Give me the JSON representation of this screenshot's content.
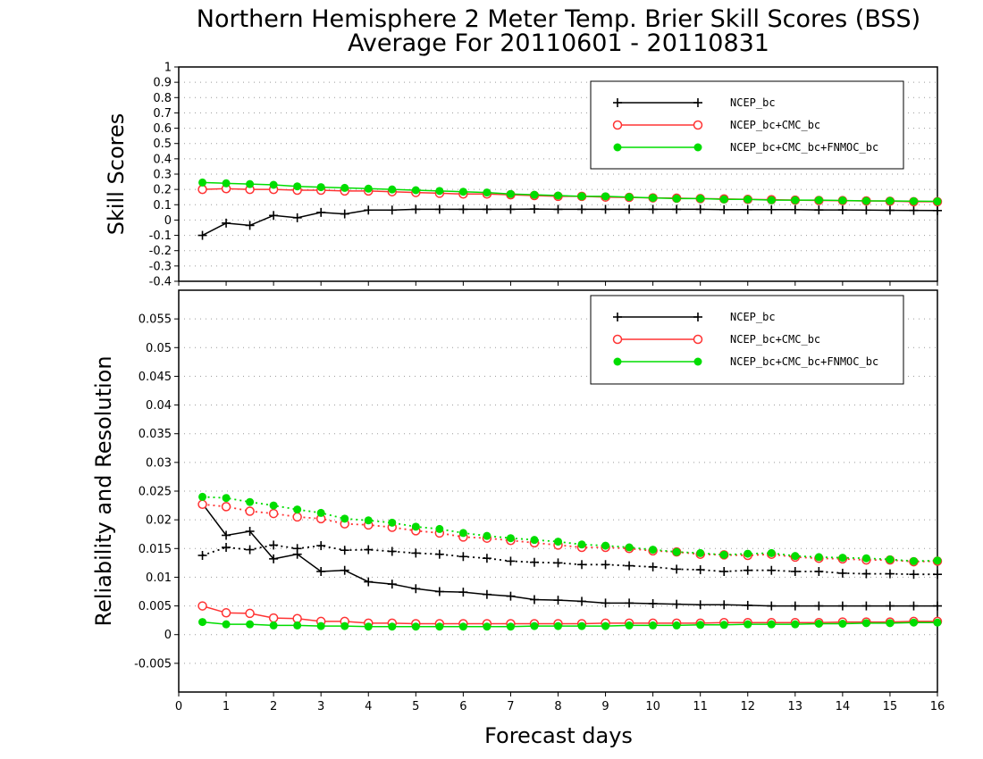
{
  "title_line1": "Northern Hemisphere 2 Meter Temp. Brier Skill Scores (BSS)",
  "title_line2": "Average For 20110601 - 20110831",
  "xlabel": "Forecast days",
  "colors": {
    "NCEP_bc": "#000000",
    "NCEP_bc+CMC_bc": "#ff3333",
    "NCEP_bc+CMC_bc+FNMOC_bc": "#00dd00"
  },
  "chart_data": [
    {
      "type": "line",
      "ylabel": "Skill Scores",
      "xlim": [
        0,
        16
      ],
      "ylim": [
        -0.4,
        1
      ],
      "yticks": [
        "-0.4",
        "-0.3",
        "-0.2",
        "-0.1",
        "0",
        "0.1",
        "0.2",
        "0.3",
        "0.4",
        "0.5",
        "0.6",
        "0.7",
        "0.8",
        "0.9",
        "1"
      ],
      "xticks": [
        "0",
        "1",
        "2",
        "3",
        "4",
        "5",
        "6",
        "7",
        "8",
        "9",
        "10",
        "11",
        "12",
        "13",
        "14",
        "15",
        "16"
      ],
      "grid": true,
      "legend_position": "top-right",
      "x": [
        0.5,
        1,
        1.5,
        2,
        2.5,
        3,
        3.5,
        4,
        4.5,
        5,
        5.5,
        6,
        6.5,
        7,
        7.5,
        8,
        8.5,
        9,
        9.5,
        10,
        10.5,
        11,
        11.5,
        12,
        12.5,
        13,
        13.5,
        14,
        14.5,
        15,
        15.5,
        16
      ],
      "series": [
        {
          "name": "NCEP_bc",
          "marker": "plus",
          "style": "solid",
          "values": [
            -0.1,
            -0.02,
            -0.035,
            0.03,
            0.015,
            0.05,
            0.04,
            0.065,
            0.065,
            0.07,
            0.07,
            0.07,
            0.07,
            0.07,
            0.072,
            0.07,
            0.07,
            0.07,
            0.07,
            0.07,
            0.07,
            0.07,
            0.068,
            0.068,
            0.068,
            0.068,
            0.066,
            0.066,
            0.065,
            0.064,
            0.063,
            0.062
          ]
        },
        {
          "name": "NCEP_bc+CMC_bc",
          "marker": "open-circle",
          "style": "solid",
          "values": [
            0.2,
            0.205,
            0.2,
            0.2,
            0.195,
            0.195,
            0.19,
            0.19,
            0.185,
            0.18,
            0.175,
            0.17,
            0.17,
            0.165,
            0.16,
            0.155,
            0.155,
            0.15,
            0.148,
            0.145,
            0.143,
            0.14,
            0.138,
            0.135,
            0.133,
            0.13,
            0.128,
            0.127,
            0.125,
            0.123,
            0.12,
            0.12
          ]
        },
        {
          "name": "NCEP_bc+CMC_bc+FNMOC_bc",
          "marker": "filled-circle",
          "style": "solid",
          "values": [
            0.245,
            0.24,
            0.235,
            0.23,
            0.22,
            0.215,
            0.21,
            0.205,
            0.2,
            0.195,
            0.19,
            0.185,
            0.18,
            0.17,
            0.165,
            0.16,
            0.155,
            0.155,
            0.15,
            0.145,
            0.14,
            0.14,
            0.135,
            0.135,
            0.13,
            0.13,
            0.13,
            0.128,
            0.125,
            0.125,
            0.123,
            0.122
          ]
        }
      ]
    },
    {
      "type": "line",
      "ylabel": "Reliability and Resolution",
      "xlim": [
        0,
        16
      ],
      "ylim": [
        -0.01,
        0.06
      ],
      "yticks": [
        "-0.005",
        "0",
        "0.005",
        "0.01",
        "0.015",
        "0.02",
        "0.025",
        "0.03",
        "0.035",
        "0.04",
        "0.045",
        "0.05",
        "0.055"
      ],
      "xticks": [
        "0",
        "1",
        "2",
        "3",
        "4",
        "5",
        "6",
        "7",
        "8",
        "9",
        "10",
        "11",
        "12",
        "13",
        "14",
        "15",
        "16"
      ],
      "grid": true,
      "legend_position": "top-right",
      "x": [
        0.5,
        1,
        1.5,
        2,
        2.5,
        3,
        3.5,
        4,
        4.5,
        5,
        5.5,
        6,
        6.5,
        7,
        7.5,
        8,
        8.5,
        9,
        9.5,
        10,
        10.5,
        11,
        11.5,
        12,
        12.5,
        13,
        13.5,
        14,
        14.5,
        15,
        15.5,
        16
      ],
      "series": [
        {
          "name": "NCEP_bc",
          "group": "reliability",
          "marker": "plus",
          "style": "solid",
          "values": [
            0.0228,
            0.0173,
            0.018,
            0.0132,
            0.014,
            0.011,
            0.0112,
            0.0092,
            0.0088,
            0.008,
            0.0075,
            0.0074,
            0.007,
            0.0067,
            0.0061,
            0.006,
            0.0058,
            0.0055,
            0.0055,
            0.0054,
            0.0053,
            0.0052,
            0.0052,
            0.0051,
            0.005,
            0.005,
            0.005,
            0.005,
            0.005,
            0.005,
            0.005,
            0.005
          ]
        },
        {
          "name": "NCEP_bc",
          "group": "resolution",
          "marker": "plus",
          "style": "dotted",
          "values": [
            0.0138,
            0.0152,
            0.0148,
            0.0156,
            0.015,
            0.0155,
            0.0147,
            0.0148,
            0.0145,
            0.0142,
            0.014,
            0.0136,
            0.0133,
            0.0128,
            0.0126,
            0.0125,
            0.0122,
            0.0122,
            0.012,
            0.0118,
            0.0114,
            0.0113,
            0.011,
            0.0112,
            0.0112,
            0.011,
            0.011,
            0.0107,
            0.0106,
            0.0106,
            0.0105,
            0.0105
          ]
        },
        {
          "name": "NCEP_bc+CMC_bc",
          "group": "reliability",
          "marker": "open-circle",
          "style": "solid",
          "values": [
            0.005,
            0.0038,
            0.0037,
            0.0029,
            0.0028,
            0.0023,
            0.0023,
            0.002,
            0.002,
            0.0019,
            0.0019,
            0.0019,
            0.0019,
            0.0019,
            0.0019,
            0.0019,
            0.0019,
            0.002,
            0.002,
            0.002,
            0.002,
            0.002,
            0.0021,
            0.0021,
            0.0021,
            0.0021,
            0.0021,
            0.0022,
            0.0022,
            0.0022,
            0.0023,
            0.0023
          ]
        },
        {
          "name": "NCEP_bc+CMC_bc",
          "group": "resolution",
          "marker": "open-circle",
          "style": "dotted",
          "values": [
            0.0227,
            0.0223,
            0.0215,
            0.0211,
            0.0205,
            0.0202,
            0.0193,
            0.0191,
            0.0187,
            0.0181,
            0.0177,
            0.017,
            0.0168,
            0.0164,
            0.016,
            0.0156,
            0.0152,
            0.0152,
            0.015,
            0.0146,
            0.0144,
            0.014,
            0.0139,
            0.0138,
            0.014,
            0.0135,
            0.0133,
            0.0132,
            0.013,
            0.013,
            0.0127,
            0.0128
          ]
        },
        {
          "name": "NCEP_bc+CMC_bc+FNMOC_bc",
          "group": "reliability",
          "marker": "filled-circle",
          "style": "solid",
          "values": [
            0.0022,
            0.0018,
            0.0018,
            0.0016,
            0.0016,
            0.0015,
            0.0015,
            0.0014,
            0.0014,
            0.0014,
            0.0014,
            0.0014,
            0.0014,
            0.0014,
            0.0015,
            0.0015,
            0.0015,
            0.0015,
            0.0016,
            0.0016,
            0.0016,
            0.0017,
            0.0017,
            0.0018,
            0.0018,
            0.0018,
            0.0019,
            0.0019,
            0.002,
            0.002,
            0.0021,
            0.0021
          ]
        },
        {
          "name": "NCEP_bc+CMC_bc+FNMOC_bc",
          "group": "resolution",
          "marker": "filled-circle",
          "style": "dotted",
          "values": [
            0.024,
            0.0238,
            0.0231,
            0.0225,
            0.0218,
            0.0212,
            0.0202,
            0.0199,
            0.0195,
            0.0188,
            0.0184,
            0.0177,
            0.0172,
            0.0168,
            0.0165,
            0.0162,
            0.0157,
            0.0155,
            0.0152,
            0.0148,
            0.0144,
            0.0142,
            0.0139,
            0.0141,
            0.0142,
            0.0137,
            0.0135,
            0.0134,
            0.0133,
            0.0131,
            0.0128,
            0.0129
          ]
        }
      ]
    }
  ]
}
